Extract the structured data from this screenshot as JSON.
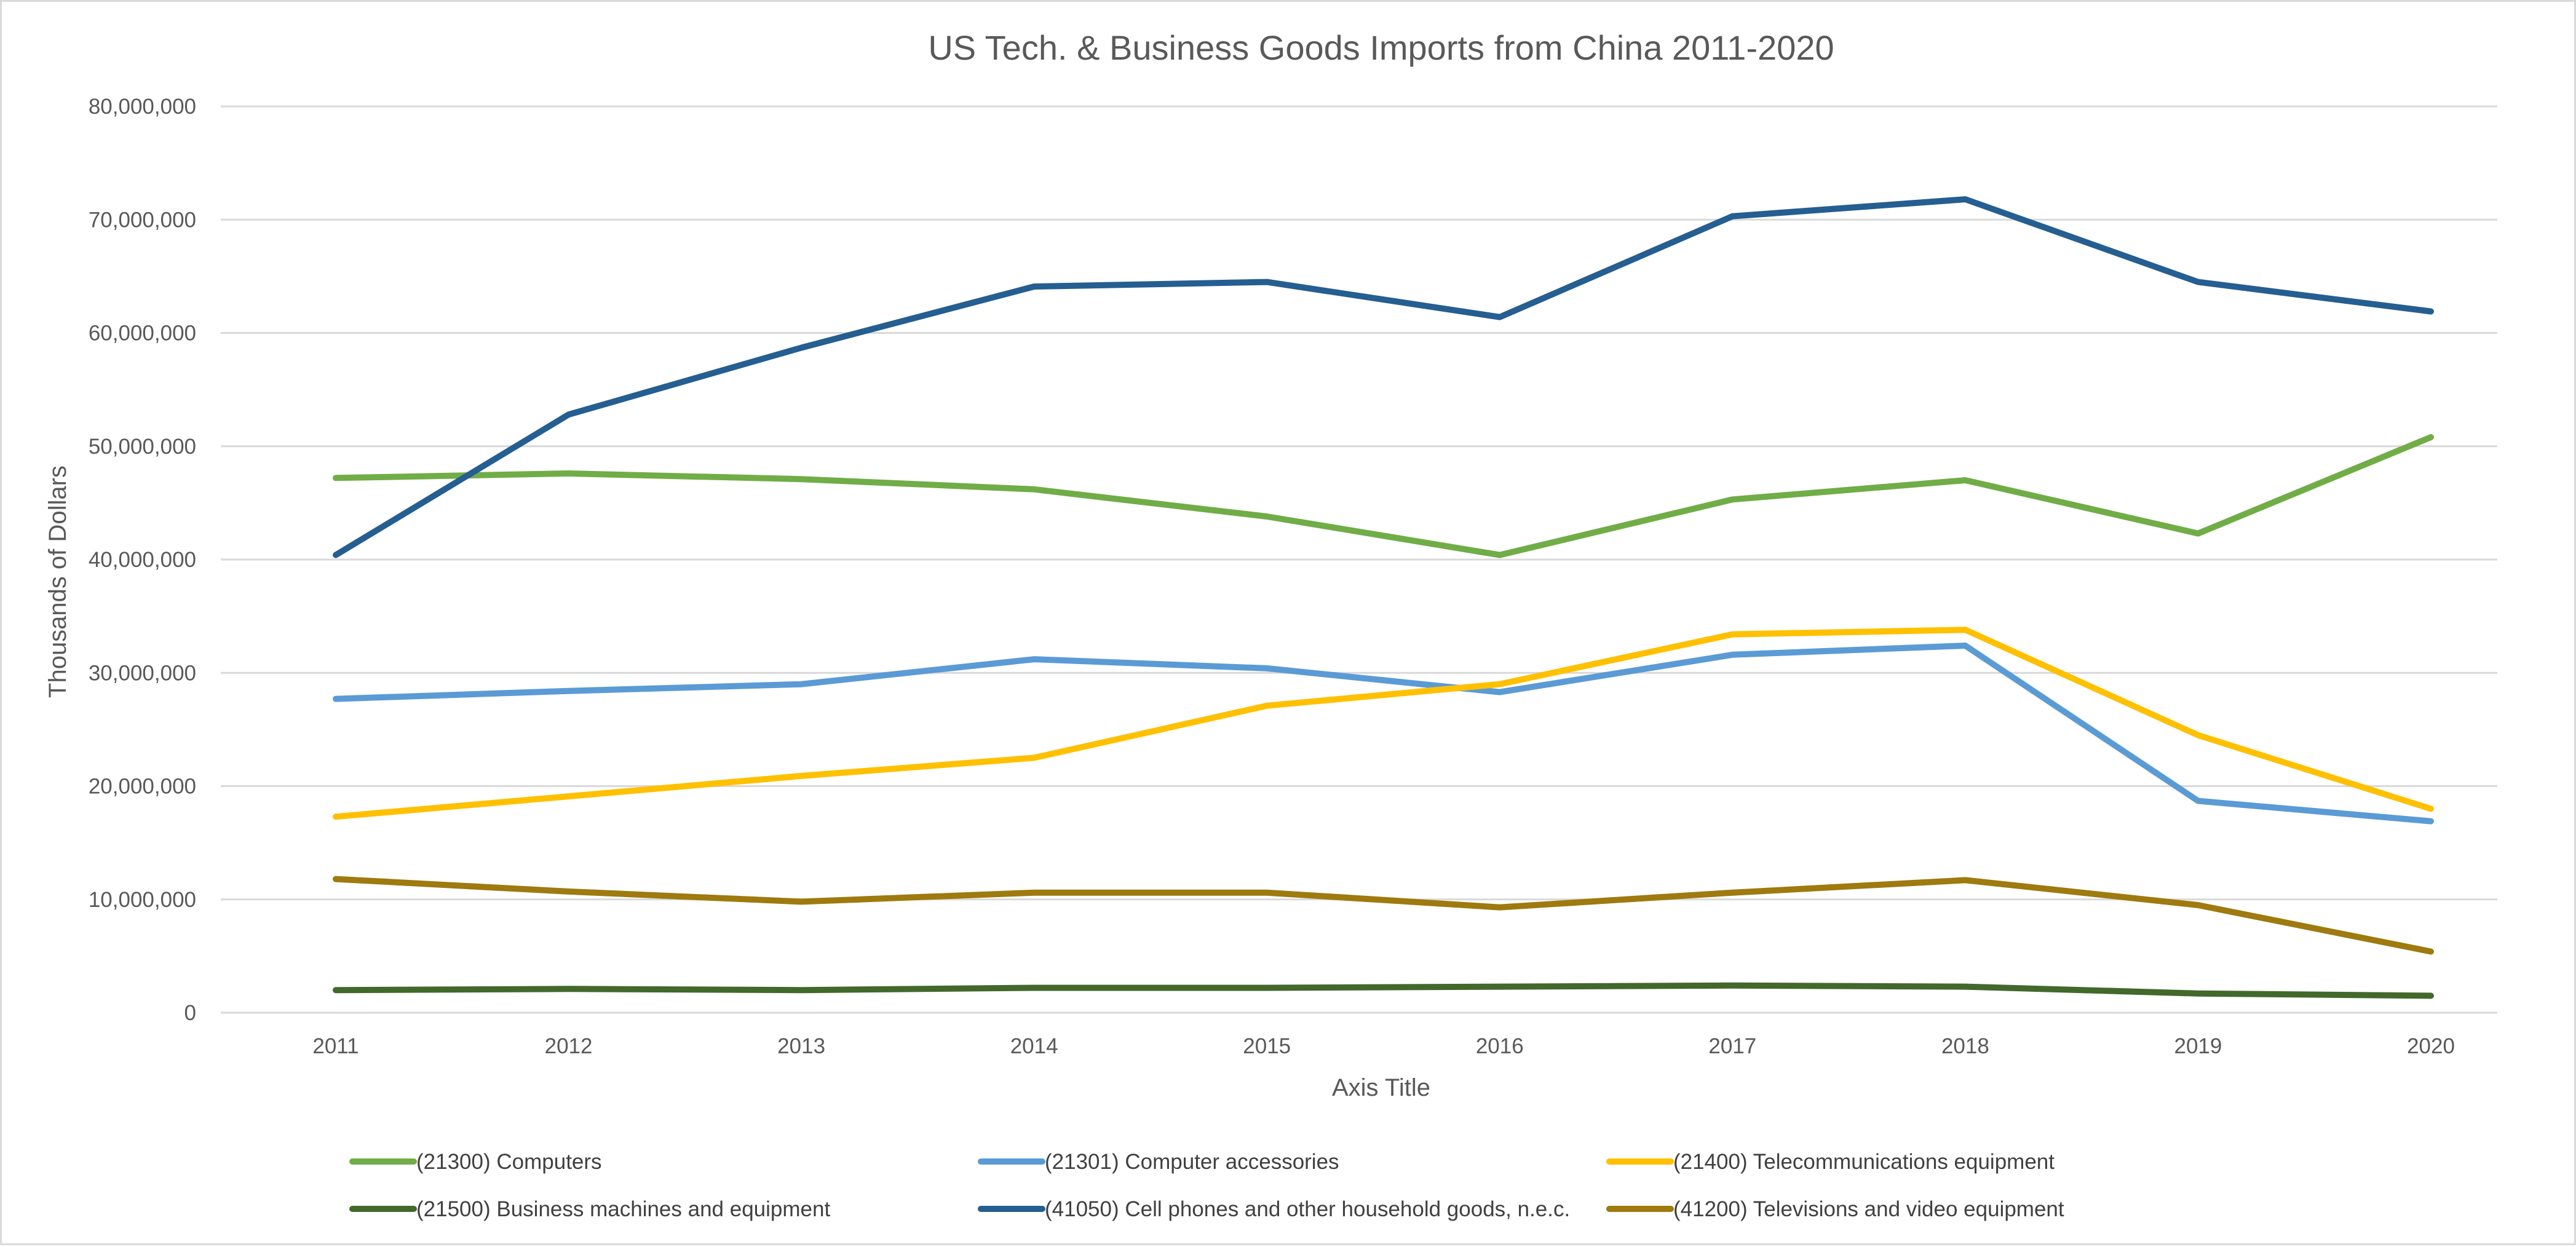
{
  "chart_data": {
    "type": "line",
    "title": "US Tech.  & Business Goods Imports from China 2011-2020",
    "xlabel": "Axis Title",
    "ylabel": "Thousands of Dollars",
    "categories": [
      "2011",
      "2012",
      "2013",
      "2014",
      "2015",
      "2016",
      "2017",
      "2018",
      "2019",
      "2020"
    ],
    "ylim": [
      0,
      80000000
    ],
    "yticks": [
      0,
      10000000,
      20000000,
      30000000,
      40000000,
      50000000,
      60000000,
      70000000,
      80000000
    ],
    "ytick_labels": [
      "0",
      "10,000,000",
      "20,000,000",
      "30,000,000",
      "40,000,000",
      "50,000,000",
      "60,000,000",
      "70,000,000",
      "80,000,000"
    ],
    "grid": true,
    "legend_position": "bottom",
    "series": [
      {
        "name": "(21300) Computers",
        "color": "#70ad47",
        "values": [
          47200000,
          47600000,
          47100000,
          46200000,
          43800000,
          40400000,
          45300000,
          47000000,
          42300000,
          50800000
        ]
      },
      {
        "name": "(21301) Computer accessories",
        "color": "#5b9bd5",
        "values": [
          27700000,
          28400000,
          29000000,
          31200000,
          30400000,
          28300000,
          31600000,
          32400000,
          18700000,
          16900000
        ]
      },
      {
        "name": "(21400) Telecommunications equipment",
        "color": "#ffc000",
        "values": [
          17300000,
          19100000,
          20900000,
          22500000,
          27100000,
          29000000,
          33400000,
          33800000,
          24500000,
          18000000
        ]
      },
      {
        "name": "(21500) Business machines and equipment",
        "color": "#43682b",
        "values": [
          2000000,
          2100000,
          2000000,
          2200000,
          2200000,
          2300000,
          2400000,
          2300000,
          1700000,
          1500000
        ]
      },
      {
        "name": "(41050) Cell phones and other household goods, n.e.c.",
        "color": "#255e91",
        "values": [
          40400000,
          52800000,
          58700000,
          64100000,
          64500000,
          61400000,
          70300000,
          71800000,
          64500000,
          61900000
        ]
      },
      {
        "name": "(41200) Televisions and video equipment",
        "color": "#9e7a0f",
        "values": [
          11800000,
          10700000,
          9800000,
          10600000,
          10600000,
          9300000,
          10600000,
          11700000,
          9500000,
          5400000
        ]
      }
    ]
  }
}
